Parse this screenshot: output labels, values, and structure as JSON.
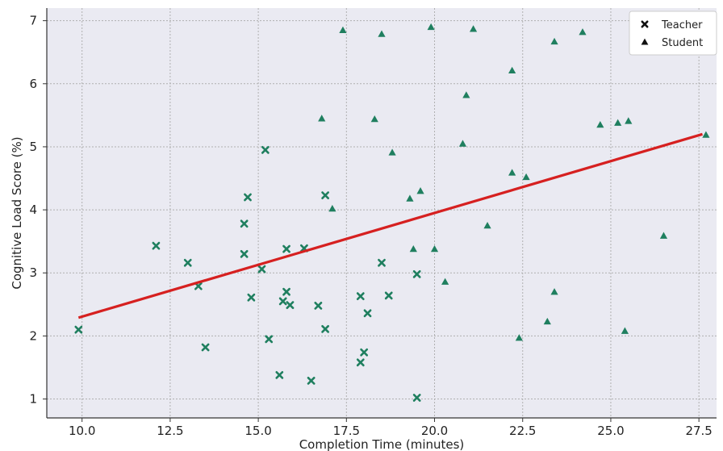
{
  "chart_data": {
    "type": "scatter",
    "title": "",
    "xlabel": "Completion Time (minutes)",
    "ylabel": "Cognitive Load Score (%)",
    "xlim": [
      9.0,
      28.0
    ],
    "ylim": [
      0.7,
      7.2
    ],
    "xticks": [
      10.0,
      12.5,
      15.0,
      17.5,
      20.0,
      22.5,
      25.0,
      27.5
    ],
    "xtick_labels": [
      "10.0",
      "12.5",
      "15.0",
      "17.5",
      "20.0",
      "22.5",
      "25.0",
      "27.5"
    ],
    "yticks": [
      1,
      2,
      3,
      4,
      5,
      6,
      7
    ],
    "ytick_labels": [
      "1",
      "2",
      "3",
      "4",
      "5",
      "6",
      "7"
    ],
    "grid": true,
    "legend_position": "top-right",
    "background": "#eaeaf2",
    "series": [
      {
        "name": "Teacher",
        "marker": "x",
        "color": "#1f7f5f",
        "points": [
          [
            9.9,
            2.1
          ],
          [
            12.1,
            3.43
          ],
          [
            13.0,
            3.16
          ],
          [
            13.3,
            2.79
          ],
          [
            13.5,
            1.82
          ],
          [
            14.6,
            3.78
          ],
          [
            14.6,
            3.3
          ],
          [
            14.7,
            4.2
          ],
          [
            14.8,
            2.61
          ],
          [
            15.1,
            3.06
          ],
          [
            15.2,
            4.95
          ],
          [
            15.3,
            1.95
          ],
          [
            15.6,
            1.38
          ],
          [
            15.7,
            2.55
          ],
          [
            15.8,
            3.38
          ],
          [
            15.8,
            2.7
          ],
          [
            15.9,
            2.49
          ],
          [
            16.3,
            3.39
          ],
          [
            16.5,
            1.29
          ],
          [
            16.7,
            2.48
          ],
          [
            16.9,
            4.23
          ],
          [
            16.9,
            2.11
          ],
          [
            17.9,
            1.58
          ],
          [
            17.9,
            2.63
          ],
          [
            18.0,
            1.74
          ],
          [
            18.1,
            2.36
          ],
          [
            18.5,
            3.16
          ],
          [
            18.7,
            2.64
          ],
          [
            19.5,
            2.98
          ],
          [
            19.5,
            1.02
          ]
        ]
      },
      {
        "name": "Student",
        "marker": "triangle",
        "color": "#1f7f5f",
        "points": [
          [
            16.8,
            5.45
          ],
          [
            17.1,
            4.02
          ],
          [
            17.4,
            6.85
          ],
          [
            18.3,
            5.44
          ],
          [
            18.5,
            6.79
          ],
          [
            18.8,
            4.91
          ],
          [
            19.3,
            4.18
          ],
          [
            19.4,
            3.38
          ],
          [
            19.6,
            4.3
          ],
          [
            19.9,
            6.9
          ],
          [
            20.0,
            3.38
          ],
          [
            20.3,
            2.86
          ],
          [
            20.8,
            5.05
          ],
          [
            20.9,
            5.82
          ],
          [
            21.1,
            6.87
          ],
          [
            21.5,
            3.75
          ],
          [
            22.2,
            4.59
          ],
          [
            22.2,
            6.21
          ],
          [
            22.4,
            1.97
          ],
          [
            22.6,
            4.52
          ],
          [
            23.2,
            2.23
          ],
          [
            23.4,
            6.67
          ],
          [
            23.4,
            2.7
          ],
          [
            24.2,
            6.82
          ],
          [
            24.7,
            5.35
          ],
          [
            25.2,
            5.38
          ],
          [
            25.4,
            2.08
          ],
          [
            25.5,
            5.41
          ],
          [
            26.5,
            3.59
          ],
          [
            27.7,
            5.19
          ]
        ]
      }
    ],
    "trendline": {
      "color": "#d62020",
      "x": [
        9.9,
        27.6
      ],
      "y": [
        2.29,
        5.2
      ]
    }
  }
}
